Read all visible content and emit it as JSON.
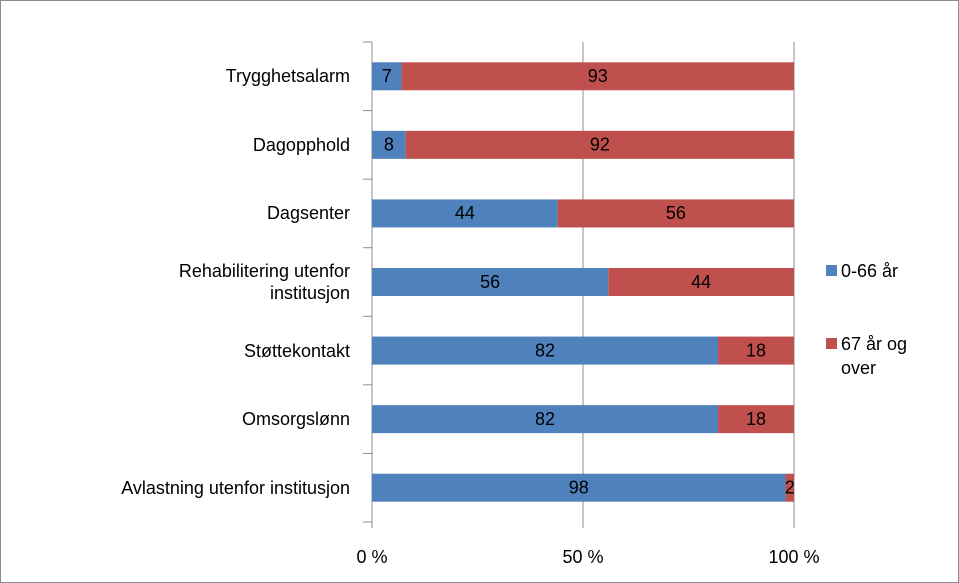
{
  "chart_data": {
    "type": "stacked-barh",
    "categories": [
      "Trygghetsalarm",
      "Dagopphold",
      "Dagsenter",
      "Rehabilitering utenfor institusjon",
      "Støttekontakt",
      "Omsorgslønn",
      "Avlastning utenfor institusjon"
    ],
    "series": [
      {
        "name": "0-66 år",
        "color": "#4f81bd",
        "values": [
          7,
          8,
          44,
          56,
          82,
          82,
          98
        ]
      },
      {
        "name": "67 år og over",
        "color": "#c0504d",
        "values": [
          93,
          92,
          56,
          44,
          18,
          18,
          2
        ]
      }
    ],
    "xlim": [
      0,
      100
    ],
    "xticks": [
      {
        "value": 0,
        "label": "0 %"
      },
      {
        "value": 50,
        "label": "50 %"
      },
      {
        "value": 100,
        "label": "100 %"
      }
    ],
    "grid": true,
    "legend": "right"
  }
}
